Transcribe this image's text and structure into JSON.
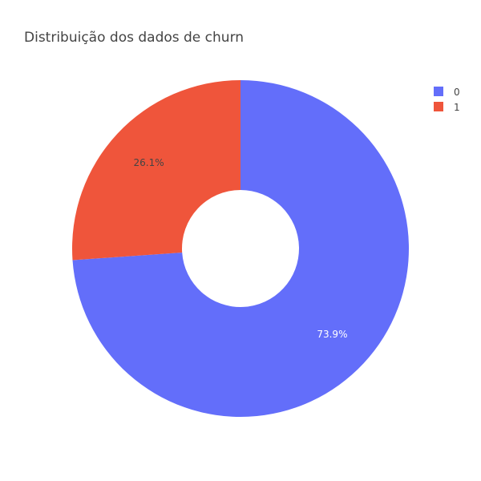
{
  "chart_data": {
    "type": "pie",
    "title": "Distribuição dos dados de churn",
    "hole": true,
    "categories": [
      "0",
      "1"
    ],
    "values": [
      73.9,
      26.1
    ],
    "labels": [
      "73.9%",
      "26.1%"
    ],
    "colors": [
      "#636efa",
      "#ef553b"
    ],
    "label_colors": [
      "#ffffff",
      "#444444"
    ],
    "legend": {
      "placement": "top-right",
      "entries": [
        "0",
        "1"
      ]
    }
  }
}
